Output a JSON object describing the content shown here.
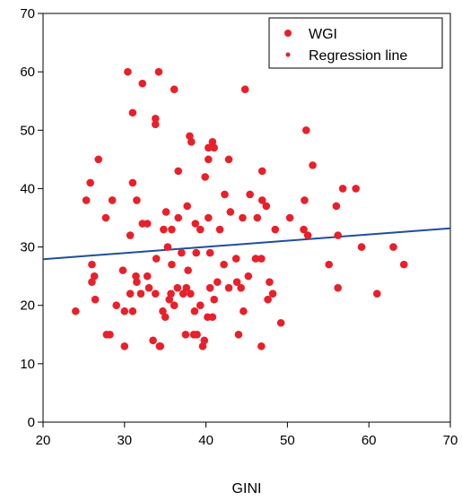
{
  "chart_data": {
    "type": "scatter",
    "xlabel": "GINI",
    "ylabel": "",
    "xlim": [
      20,
      70
    ],
    "ylim": [
      0,
      70
    ],
    "x_ticks": [
      20,
      30,
      40,
      50,
      60,
      70
    ],
    "y_ticks": [
      0,
      10,
      20,
      30,
      40,
      50,
      60,
      70
    ],
    "grid": false,
    "legend_position": "top-right",
    "legend": [
      "WGI",
      "Regression line"
    ],
    "colors": {
      "points": "#e8202a",
      "line": "#1f4e9c"
    },
    "series": [
      {
        "name": "WGI",
        "type": "scatter",
        "points": [
          [
            30.4,
            60
          ],
          [
            32.2,
            58
          ],
          [
            34.2,
            60
          ],
          [
            36.1,
            57
          ],
          [
            44.8,
            57
          ],
          [
            31,
            53
          ],
          [
            33.8,
            52
          ],
          [
            33.8,
            51
          ],
          [
            38,
            49
          ],
          [
            38.2,
            48
          ],
          [
            40.3,
            47
          ],
          [
            40.8,
            48
          ],
          [
            41,
            47
          ],
          [
            52.3,
            50
          ],
          [
            26.8,
            45
          ],
          [
            36.6,
            43
          ],
          [
            40.3,
            45
          ],
          [
            42.8,
            45
          ],
          [
            46.9,
            43
          ],
          [
            53.1,
            44
          ],
          [
            25.8,
            41
          ],
          [
            31,
            41
          ],
          [
            39.9,
            42
          ],
          [
            28.5,
            38
          ],
          [
            31.5,
            38
          ],
          [
            37.7,
            37
          ],
          [
            46.9,
            38
          ],
          [
            47.4,
            37
          ],
          [
            56.8,
            40
          ],
          [
            58.4,
            40
          ],
          [
            25.3,
            38
          ],
          [
            27.7,
            35
          ],
          [
            35.1,
            36
          ],
          [
            36.6,
            35
          ],
          [
            40.3,
            35
          ],
          [
            42.3,
            39
          ],
          [
            43,
            36
          ],
          [
            45.4,
            39
          ],
          [
            50.3,
            35
          ],
          [
            52.1,
            38
          ],
          [
            56,
            37
          ],
          [
            32.2,
            34
          ],
          [
            32.8,
            34
          ],
          [
            30.7,
            32
          ],
          [
            34.8,
            33
          ],
          [
            35.8,
            33
          ],
          [
            38.7,
            34
          ],
          [
            41.7,
            33
          ],
          [
            44.5,
            35
          ],
          [
            46.3,
            35
          ],
          [
            48.5,
            33
          ],
          [
            52,
            33
          ],
          [
            52.5,
            32
          ],
          [
            56.2,
            32
          ],
          [
            59.1,
            30
          ],
          [
            63,
            30
          ],
          [
            26,
            27
          ],
          [
            26.3,
            25
          ],
          [
            26,
            24
          ],
          [
            29.8,
            26
          ],
          [
            31.4,
            25
          ],
          [
            32.8,
            25
          ],
          [
            33.9,
            28
          ],
          [
            35.3,
            30
          ],
          [
            37,
            29
          ],
          [
            38.8,
            29
          ],
          [
            40.5,
            29
          ],
          [
            42.2,
            27
          ],
          [
            43.7,
            28
          ],
          [
            46.1,
            28
          ],
          [
            46.8,
            28
          ],
          [
            47.8,
            24
          ],
          [
            48.2,
            22
          ],
          [
            55.1,
            27
          ],
          [
            64.3,
            27
          ],
          [
            24,
            19
          ],
          [
            26.4,
            21
          ],
          [
            27.8,
            15
          ],
          [
            28.2,
            15
          ],
          [
            29,
            20
          ],
          [
            30,
            19
          ],
          [
            30.7,
            22
          ],
          [
            31,
            19
          ],
          [
            31.5,
            24
          ],
          [
            32,
            22
          ],
          [
            33,
            23
          ],
          [
            33.5,
            14
          ],
          [
            33.8,
            22
          ],
          [
            34.4,
            13
          ],
          [
            34.7,
            19
          ],
          [
            35,
            18
          ],
          [
            35.5,
            21
          ],
          [
            35.7,
            22
          ],
          [
            36.1,
            20
          ],
          [
            36.5,
            23
          ],
          [
            37.2,
            22
          ],
          [
            37.5,
            15
          ],
          [
            37.6,
            23
          ],
          [
            38.1,
            22
          ],
          [
            38.5,
            15
          ],
          [
            38.6,
            19
          ],
          [
            38.9,
            15
          ],
          [
            39.3,
            20
          ],
          [
            39.6,
            13
          ],
          [
            39.8,
            14
          ],
          [
            40.2,
            18
          ],
          [
            40.8,
            18
          ],
          [
            41,
            21
          ],
          [
            41.4,
            24
          ],
          [
            42.8,
            23
          ],
          [
            44,
            15
          ],
          [
            44.3,
            23
          ],
          [
            44.6,
            19
          ],
          [
            45.2,
            25
          ],
          [
            46.8,
            13
          ],
          [
            47.6,
            21
          ],
          [
            49.2,
            17
          ],
          [
            56.2,
            23
          ],
          [
            61,
            22
          ],
          [
            30,
            13
          ],
          [
            34.3,
            13
          ],
          [
            37.8,
            26
          ],
          [
            40.5,
            23
          ],
          [
            43.8,
            24
          ],
          [
            35.8,
            27
          ],
          [
            39.3,
            33
          ]
        ]
      },
      {
        "name": "Regression line",
        "type": "line",
        "points": [
          [
            20,
            27.9
          ],
          [
            70,
            33.2
          ]
        ]
      }
    ]
  }
}
